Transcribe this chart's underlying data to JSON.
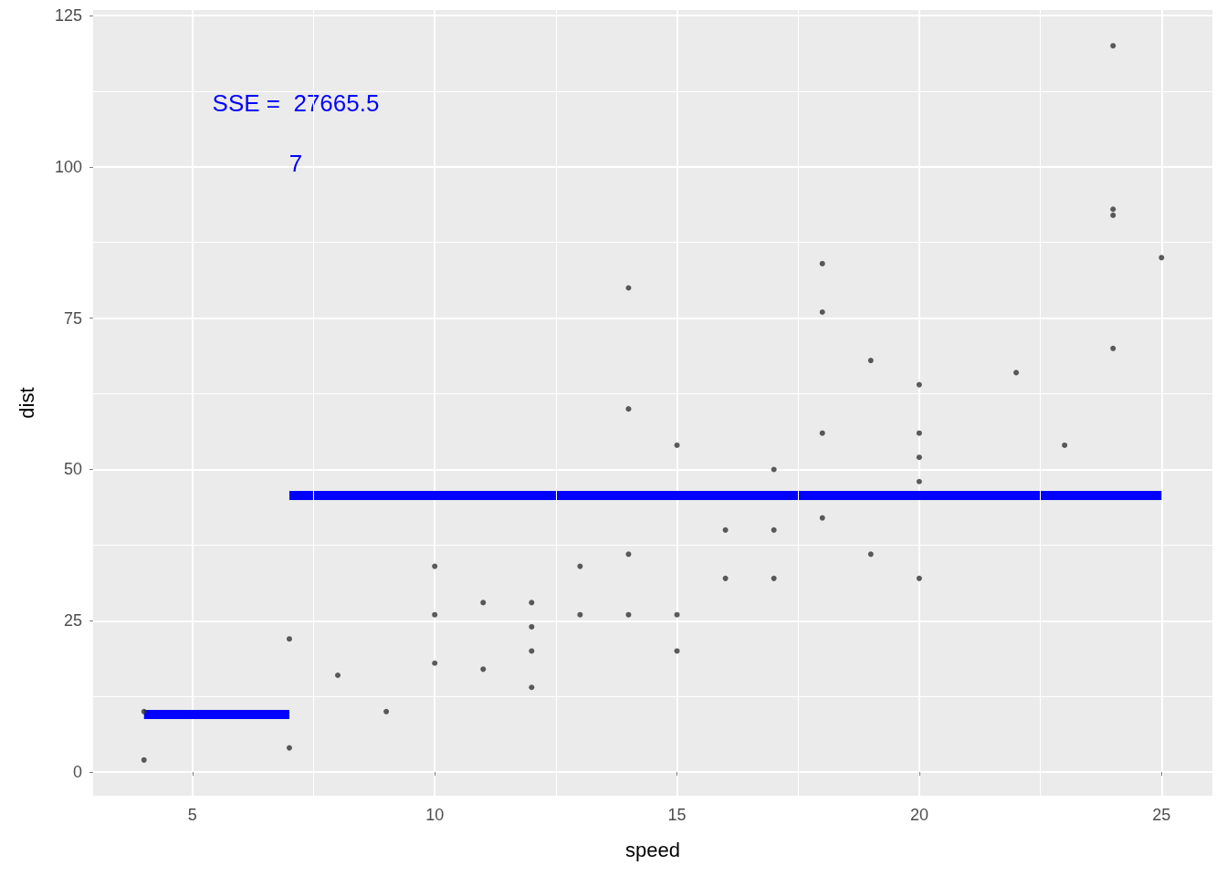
{
  "chart_data": {
    "type": "scatter",
    "xlabel": "speed",
    "ylabel": "dist",
    "xlim": [
      2.95,
      26.05
    ],
    "ylim": [
      -3.9,
      125.9
    ],
    "xticks": [
      5,
      10,
      15,
      20,
      25
    ],
    "yticks": [
      0,
      25,
      50,
      75,
      100,
      125
    ],
    "grid": true,
    "annotations": [
      "SSE =  27665.5",
      "7"
    ],
    "series": [
      {
        "color": "#333333",
        "marker": "circle",
        "x": [
          4,
          4,
          7,
          7,
          8,
          9,
          10,
          10,
          10,
          11,
          11,
          12,
          12,
          12,
          12,
          13,
          13,
          14,
          14,
          14,
          14,
          15,
          15,
          15,
          16,
          16,
          17,
          17,
          17,
          18,
          18,
          18,
          18,
          19,
          19,
          20,
          20,
          20,
          20,
          20,
          22,
          23,
          24,
          24,
          24,
          24,
          25
        ],
        "values": [
          2,
          10,
          4,
          22,
          16,
          10,
          18,
          26,
          34,
          17,
          28,
          14,
          20,
          24,
          28,
          26,
          34,
          26,
          36,
          60,
          80,
          20,
          26,
          54,
          32,
          40,
          32,
          40,
          50,
          42,
          56,
          76,
          84,
          36,
          68,
          32,
          48,
          52,
          56,
          64,
          66,
          54,
          70,
          92,
          93,
          120,
          85
        ]
      },
      {
        "type": "line",
        "color": "#0000ff",
        "marker": "none",
        "line_style": "solid",
        "x": [
          4,
          7
        ],
        "values": [
          9.5,
          9.5
        ]
      },
      {
        "type": "line",
        "color": "#0000ff",
        "marker": "none",
        "line_style": "solid",
        "x": [
          7,
          25
        ],
        "values": [
          45.7,
          45.7
        ]
      }
    ]
  }
}
